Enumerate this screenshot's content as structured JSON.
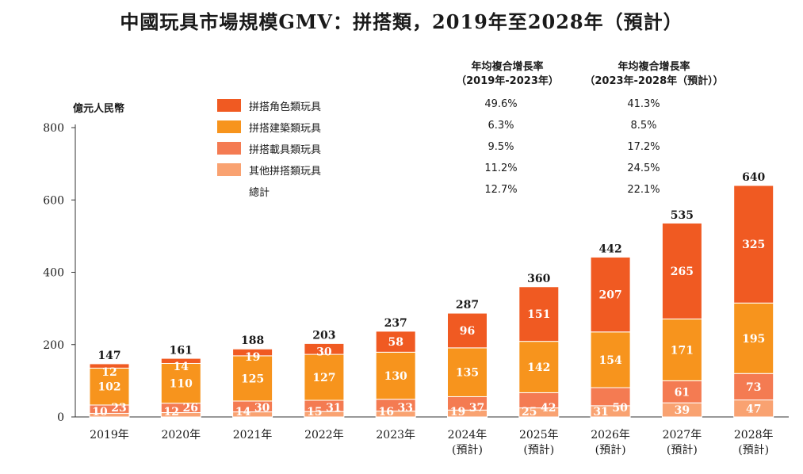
{
  "title": "中國玩具市場規模GMV：拼搭類，2019年至2028年（預計）",
  "unit_label": "億元人民幣",
  "cagr_headers": [
    {
      "line1": "年均複合增長率",
      "line2": "（2019年-2023年）"
    },
    {
      "line1": "年均複合增長率",
      "line2": "（2023年-2028年（預計））"
    }
  ],
  "legend": [
    {
      "label": "拼搭角色類玩具",
      "color": "#f05a22",
      "cagr_hist": "49.6%",
      "cagr_fore": "41.3%"
    },
    {
      "label": "拼搭建築類玩具",
      "color": "#f7941d",
      "cagr_hist": "6.3%",
      "cagr_fore": "8.5%"
    },
    {
      "label": "拼搭載具類玩具",
      "color": "#f47b52",
      "cagr_hist": "9.5%",
      "cagr_fore": "17.2%"
    },
    {
      "label": "其他拼搭類玩具",
      "color": "#f9a271",
      "cagr_hist": "11.2%",
      "cagr_fore": "24.5%"
    },
    {
      "label": "總計",
      "color": "",
      "cagr_hist": "12.7%",
      "cagr_fore": "22.1%"
    }
  ],
  "chart_data": {
    "type": "bar",
    "stacked": true,
    "categories": [
      "2019年",
      "2020年",
      "2021年",
      "2022年",
      "2023年",
      "2024年",
      "2025年",
      "2026年",
      "2027年",
      "2028年"
    ],
    "category_sublabels": [
      "",
      "",
      "",
      "",
      "",
      "(預計)",
      "(預計)",
      "(預計)",
      "(預計)",
      "(預計)"
    ],
    "series": [
      {
        "name": "其他拼搭類玩具",
        "color": "#f9a271",
        "values": [
          10,
          12,
          14,
          15,
          16,
          19,
          25,
          31,
          39,
          47
        ]
      },
      {
        "name": "拼搭載具類玩具",
        "color": "#f47b52",
        "values": [
          23,
          26,
          30,
          31,
          33,
          37,
          42,
          50,
          61,
          73
        ]
      },
      {
        "name": "拼搭建築類玩具",
        "color": "#f7941d",
        "values": [
          102,
          110,
          125,
          127,
          130,
          135,
          142,
          154,
          171,
          195
        ]
      },
      {
        "name": "拼搭角色類玩具",
        "color": "#f05a22",
        "values": [
          12,
          14,
          19,
          30,
          58,
          96,
          151,
          207,
          265,
          325
        ]
      }
    ],
    "totals": [
      147,
      161,
      188,
      203,
      237,
      287,
      360,
      442,
      535,
      640
    ],
    "yticks": [
      0,
      200,
      400,
      600,
      800
    ],
    "ylim": [
      0,
      800
    ],
    "legend_position": "top"
  }
}
